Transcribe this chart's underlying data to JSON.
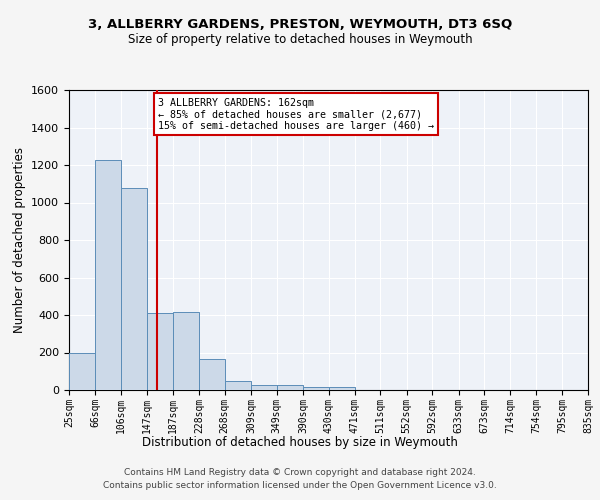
{
  "title": "3, ALLBERRY GARDENS, PRESTON, WEYMOUTH, DT3 6SQ",
  "subtitle": "Size of property relative to detached houses in Weymouth",
  "xlabel": "Distribution of detached houses by size in Weymouth",
  "ylabel": "Number of detached properties",
  "footer_line1": "Contains HM Land Registry data © Crown copyright and database right 2024.",
  "footer_line2": "Contains public sector information licensed under the Open Government Licence v3.0.",
  "bin_edges": [
    25,
    66,
    106,
    147,
    187,
    228,
    268,
    309,
    349,
    390,
    430,
    471,
    511,
    552,
    592,
    633,
    673,
    714,
    754,
    795,
    835
  ],
  "bar_heights": [
    200,
    1225,
    1075,
    410,
    415,
    165,
    50,
    25,
    25,
    15,
    15,
    0,
    0,
    0,
    0,
    0,
    0,
    0,
    0,
    0
  ],
  "bar_color": "#ccd9e8",
  "bar_edge_color": "#5b8db8",
  "property_size": 162,
  "vline_color": "#cc0000",
  "annotation_line1": "3 ALLBERRY GARDENS: 162sqm",
  "annotation_line2": "← 85% of detached houses are smaller (2,677)",
  "annotation_line3": "15% of semi-detached houses are larger (460) →",
  "annotation_box_color": "#ffffff",
  "annotation_box_edge": "#cc0000",
  "ylim": [
    0,
    1600
  ],
  "bg_color": "#eef2f8",
  "fig_bg_color": "#f5f5f5",
  "grid_color": "#ffffff",
  "tick_labels": [
    "25sqm",
    "66sqm",
    "106sqm",
    "147sqm",
    "187sqm",
    "228sqm",
    "268sqm",
    "309sqm",
    "349sqm",
    "390sqm",
    "430sqm",
    "471sqm",
    "511sqm",
    "552sqm",
    "592sqm",
    "633sqm",
    "673sqm",
    "714sqm",
    "754sqm",
    "795sqm",
    "835sqm"
  ]
}
